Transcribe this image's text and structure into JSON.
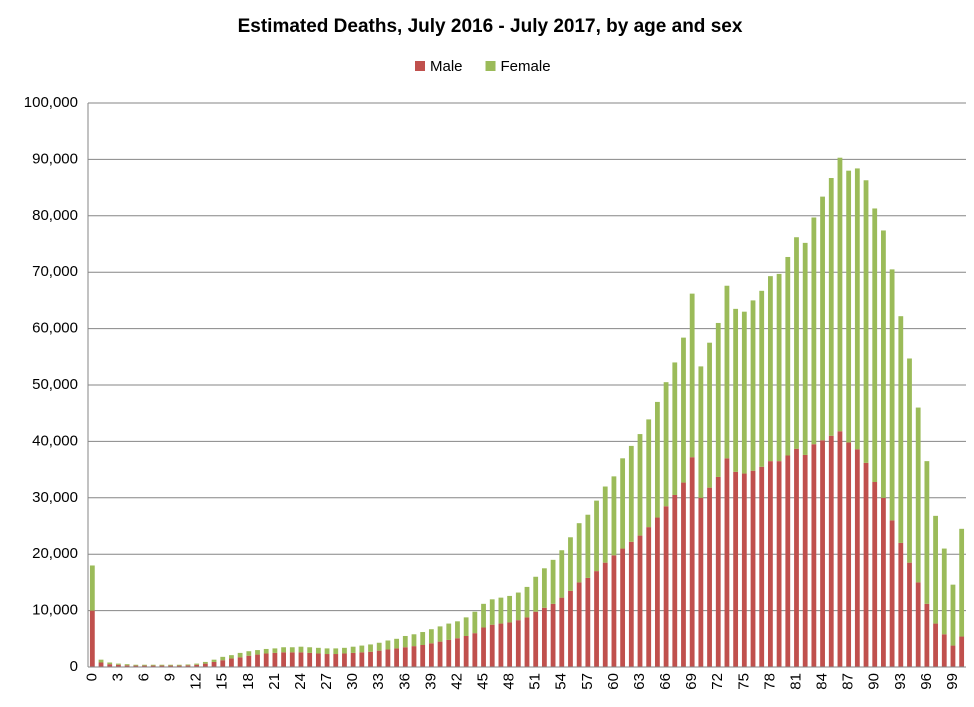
{
  "chart_data": {
    "type": "stacked_bar",
    "title": "Estimated Deaths, July 2016 - July 2017, by age and sex",
    "categories": [
      "0",
      null,
      null,
      "3",
      null,
      null,
      "6",
      null,
      null,
      "9",
      null,
      null,
      "12",
      null,
      null,
      "15",
      null,
      null,
      "18",
      null,
      null,
      "21",
      null,
      null,
      "24",
      null,
      null,
      "27",
      null,
      null,
      "30",
      null,
      null,
      "33",
      null,
      null,
      "36",
      null,
      null,
      "39",
      null,
      null,
      "42",
      null,
      null,
      "45",
      null,
      null,
      "48",
      null,
      null,
      "51",
      null,
      null,
      "54",
      null,
      null,
      "57",
      null,
      null,
      "60",
      null,
      null,
      "63",
      null,
      null,
      "66",
      null,
      null,
      "69",
      null,
      null,
      "72",
      null,
      null,
      "75",
      null,
      null,
      "78",
      null,
      null,
      "81",
      null,
      null,
      "84",
      null,
      null,
      "87",
      null,
      null,
      "90",
      null,
      null,
      "93",
      null,
      null,
      "96",
      null,
      null,
      "99",
      null
    ],
    "series": [
      {
        "name": "Male",
        "color": "#c0504d",
        "values": [
          10000,
          800,
          500,
          400,
          300,
          250,
          250,
          250,
          250,
          250,
          250,
          300,
          400,
          600,
          900,
          1200,
          1500,
          1700,
          2000,
          2200,
          2400,
          2500,
          2600,
          2600,
          2600,
          2500,
          2400,
          2300,
          2300,
          2400,
          2500,
          2600,
          2700,
          2900,
          3100,
          3300,
          3500,
          3700,
          3900,
          4200,
          4500,
          4800,
          5100,
          5500,
          6000,
          7000,
          7500,
          7700,
          7900,
          8300,
          8800,
          9800,
          10500,
          11200,
          12300,
          13500,
          15000,
          15800,
          17000,
          18500,
          19800,
          21000,
          22200,
          23300,
          24800,
          26500,
          28500,
          30500,
          32700,
          37200,
          30000,
          31800,
          33700,
          37000,
          34600,
          34300,
          34800,
          35500,
          36500,
          36500,
          37500,
          38700,
          37600,
          39500,
          40200,
          41000,
          41800,
          39800,
          38600,
          36200,
          32800,
          30000,
          26000,
          22000,
          18500,
          15000,
          11200,
          7700,
          5800,
          3800,
          5400
        ]
      },
      {
        "name": "Female",
        "color": "#9bbb59",
        "values": [
          8000,
          500,
          300,
          200,
          200,
          150,
          150,
          150,
          150,
          150,
          150,
          150,
          200,
          300,
          400,
          600,
          600,
          800,
          800,
          800,
          800,
          800,
          900,
          900,
          1000,
          1000,
          1000,
          1000,
          1000,
          1000,
          1100,
          1200,
          1300,
          1400,
          1600,
          1700,
          2000,
          2100,
          2300,
          2500,
          2700,
          2900,
          3000,
          3300,
          3800,
          4200,
          4500,
          4600,
          4700,
          4900,
          5400,
          6200,
          7000,
          7800,
          8400,
          9500,
          10500,
          11200,
          12500,
          13500,
          14000,
          16000,
          17000,
          18000,
          19100,
          20500,
          22000,
          23500,
          25700,
          29000,
          23300,
          25700,
          27300,
          30600,
          28900,
          28700,
          30200,
          31200,
          32800,
          33200,
          35200,
          37500,
          37600,
          40200,
          43200,
          45700,
          48500,
          48200,
          49800,
          50100,
          48500,
          47400,
          44500,
          40200,
          36200,
          31000,
          25300,
          19100,
          15200,
          10800,
          19100
        ]
      }
    ],
    "ylim": [
      0,
      100000
    ],
    "yticks": [
      0,
      {
        "value": 10000,
        "label": "10,000"
      },
      {
        "value": 20000,
        "label": "20,000"
      },
      {
        "value": 30000,
        "label": "30,000"
      },
      {
        "value": 40000,
        "label": "40,000"
      },
      {
        "value": 50000,
        "label": "50,000"
      },
      {
        "value": 60000,
        "label": "60,000"
      },
      {
        "value": 70000,
        "label": "70,000"
      },
      {
        "value": 80000,
        "label": "80,000"
      },
      {
        "value": 90000,
        "label": "90,000"
      },
      {
        "value": 100000,
        "label": "100,000"
      }
    ],
    "grid": true,
    "legend": "top"
  }
}
